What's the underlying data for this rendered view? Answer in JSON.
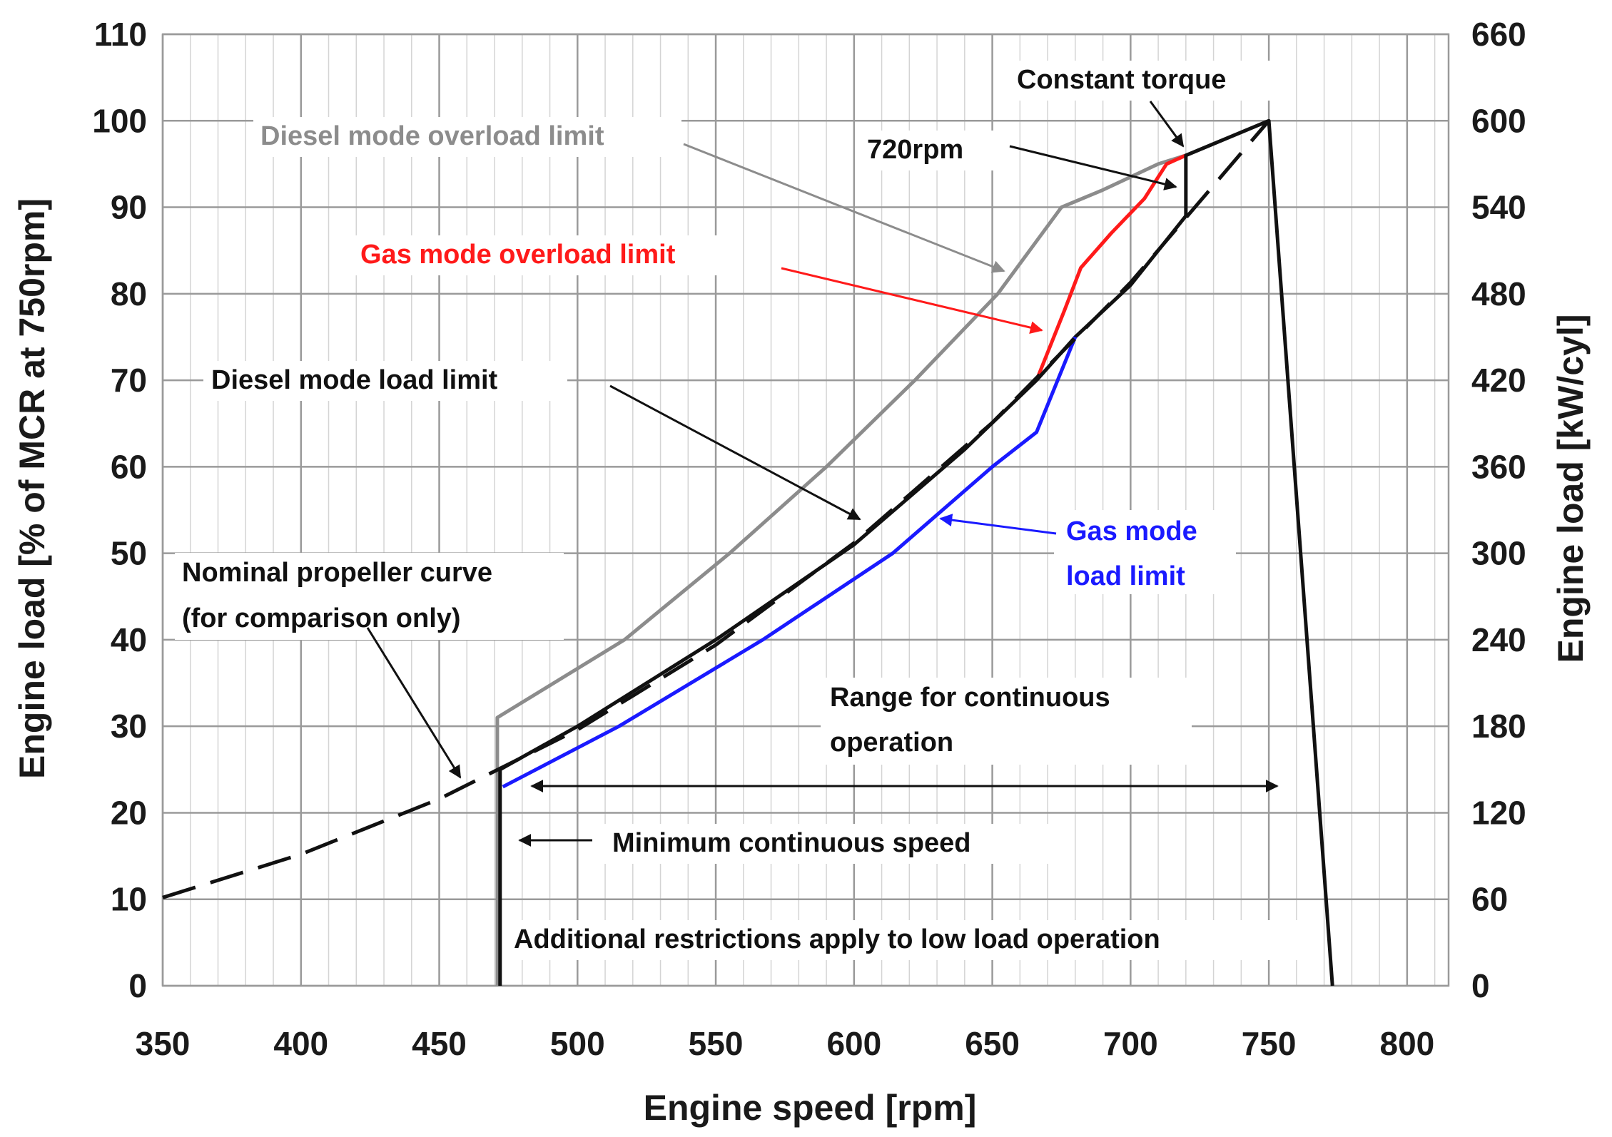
{
  "chart_data": {
    "type": "line",
    "xlabel": "Engine speed [rpm]",
    "ylabel": "Engine load [% of MCR at 750rpm]",
    "ylabel_right": "Engine load [kW/cyl]",
    "xlim": [
      350,
      815
    ],
    "ylim": [
      0,
      110
    ],
    "ylim_right": [
      0,
      660
    ],
    "x_ticks": [
      350,
      400,
      450,
      500,
      550,
      600,
      650,
      700,
      750,
      800
    ],
    "y_ticks": [
      0,
      10,
      20,
      30,
      40,
      50,
      60,
      70,
      80,
      90,
      100,
      110
    ],
    "y_ticks_right": [
      0,
      60,
      120,
      180,
      240,
      300,
      360,
      420,
      480,
      540,
      600,
      660
    ],
    "grid": true,
    "series": [
      {
        "name": "Diesel mode overload limit",
        "color": "#8c8c8c",
        "x": [
          471,
          471,
          517,
          555,
          590,
          622,
          652,
          675,
          690,
          710,
          720,
          750
        ],
        "y": [
          0,
          31,
          40,
          50,
          60,
          70,
          80,
          90,
          92,
          95,
          96,
          100
        ]
      },
      {
        "name": "Gas mode overload limit",
        "color": "#ff1a1a",
        "x": [
          666,
          676,
          682,
          693,
          705,
          713,
          720
        ],
        "y": [
          70,
          78,
          83,
          87,
          91,
          95,
          96
        ]
      },
      {
        "name": "Diesel mode load limit",
        "color": "#111111",
        "x": [
          472,
          500,
          550,
          600,
          640,
          666,
          680,
          700,
          720,
          720,
          750,
          773
        ],
        "y": [
          25,
          30,
          40,
          51,
          62,
          70,
          75,
          81,
          89,
          96,
          100,
          0
        ]
      },
      {
        "name": "Gas mode load limit",
        "color": "#1a1aff",
        "x": [
          473,
          515,
          567,
          614,
          650,
          666,
          680
        ],
        "y": [
          23,
          30,
          40,
          50,
          60,
          64,
          75
        ]
      },
      {
        "name": "Nominal propeller curve (for comparison only)",
        "color": "#111111",
        "dashed": true,
        "x": [
          350,
          400,
          450,
          500,
          550,
          600,
          650,
          700,
          750
        ],
        "y": [
          10.2,
          15.2,
          21.6,
          29.6,
          39.4,
          51.2,
          65.1,
          81.3,
          100
        ]
      },
      {
        "name": "Minimum continuous speed",
        "color": "#111111",
        "x": [
          472,
          472
        ],
        "y": [
          0,
          25
        ]
      }
    ],
    "annotations": {
      "constant_torque": "Constant torque",
      "rpm720": "720rpm",
      "diesel_overload": "Diesel mode overload limit",
      "gas_overload": "Gas mode overload limit",
      "diesel_load": "Diesel mode load limit",
      "gas_load_1": "Gas mode",
      "gas_load_2": "load limit",
      "nominal_1": "Nominal propeller curve",
      "nominal_2": "(for comparison only)",
      "range_1": "Range for continuous",
      "range_2": "operation",
      "min_speed": "Minimum continuous speed",
      "restrictions": "Additional restrictions apply to low load operation"
    }
  }
}
